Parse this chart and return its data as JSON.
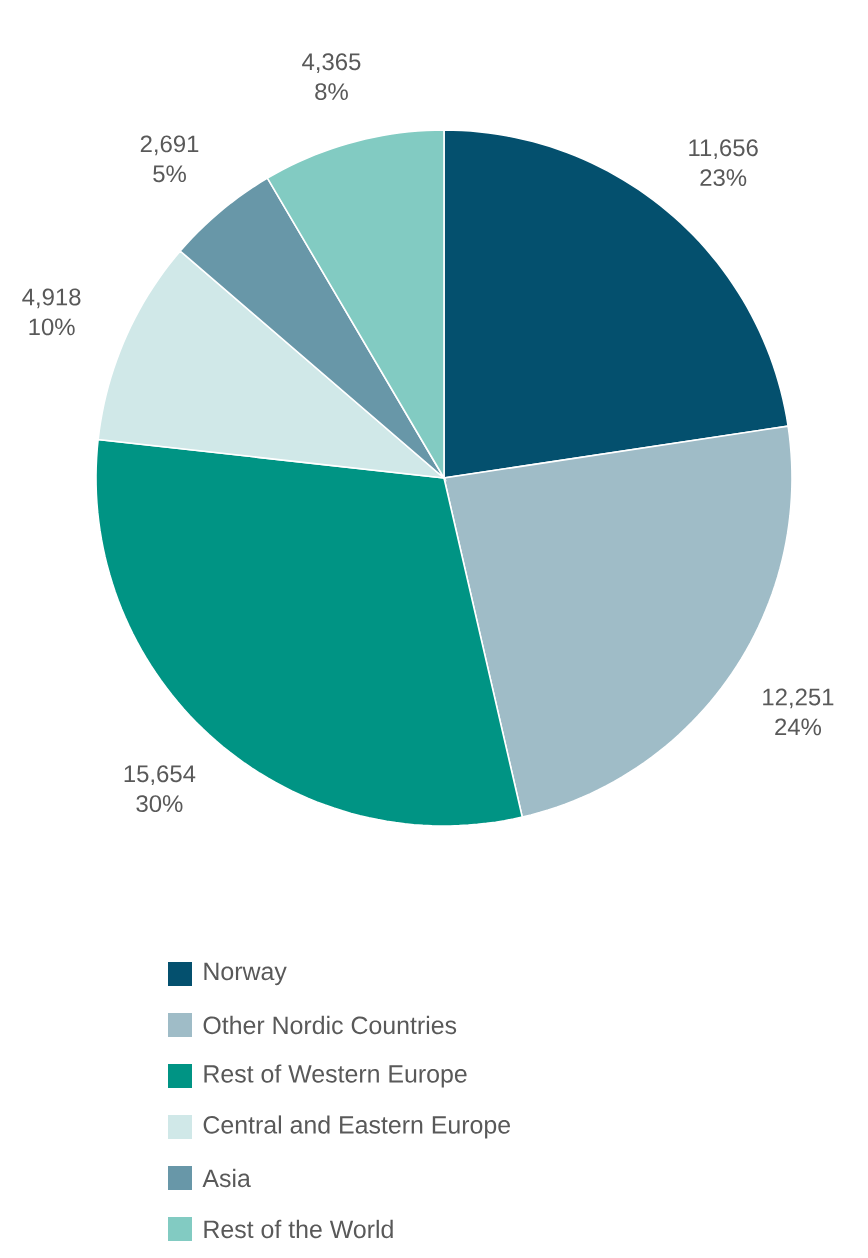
{
  "chart_data": {
    "type": "pie",
    "categories": [
      "Norway",
      "Other Nordic Countries",
      "Rest of Western Europe",
      "Central and Eastern Europe",
      "Asia",
      "Rest of the World"
    ],
    "values": [
      11656,
      12251,
      15654,
      4918,
      2691,
      4365
    ],
    "value_labels": [
      "11,656 23%",
      "12,251 24%",
      "15,654 30%",
      "4,918 10%",
      "2,691 5%",
      "4,365 8%"
    ],
    "colors": [
      "#04506e",
      "#9fbcc7",
      "#009484",
      "#d0e8e8",
      "#6897a8",
      "#82cbc2"
    ],
    "legend": "bottom"
  }
}
